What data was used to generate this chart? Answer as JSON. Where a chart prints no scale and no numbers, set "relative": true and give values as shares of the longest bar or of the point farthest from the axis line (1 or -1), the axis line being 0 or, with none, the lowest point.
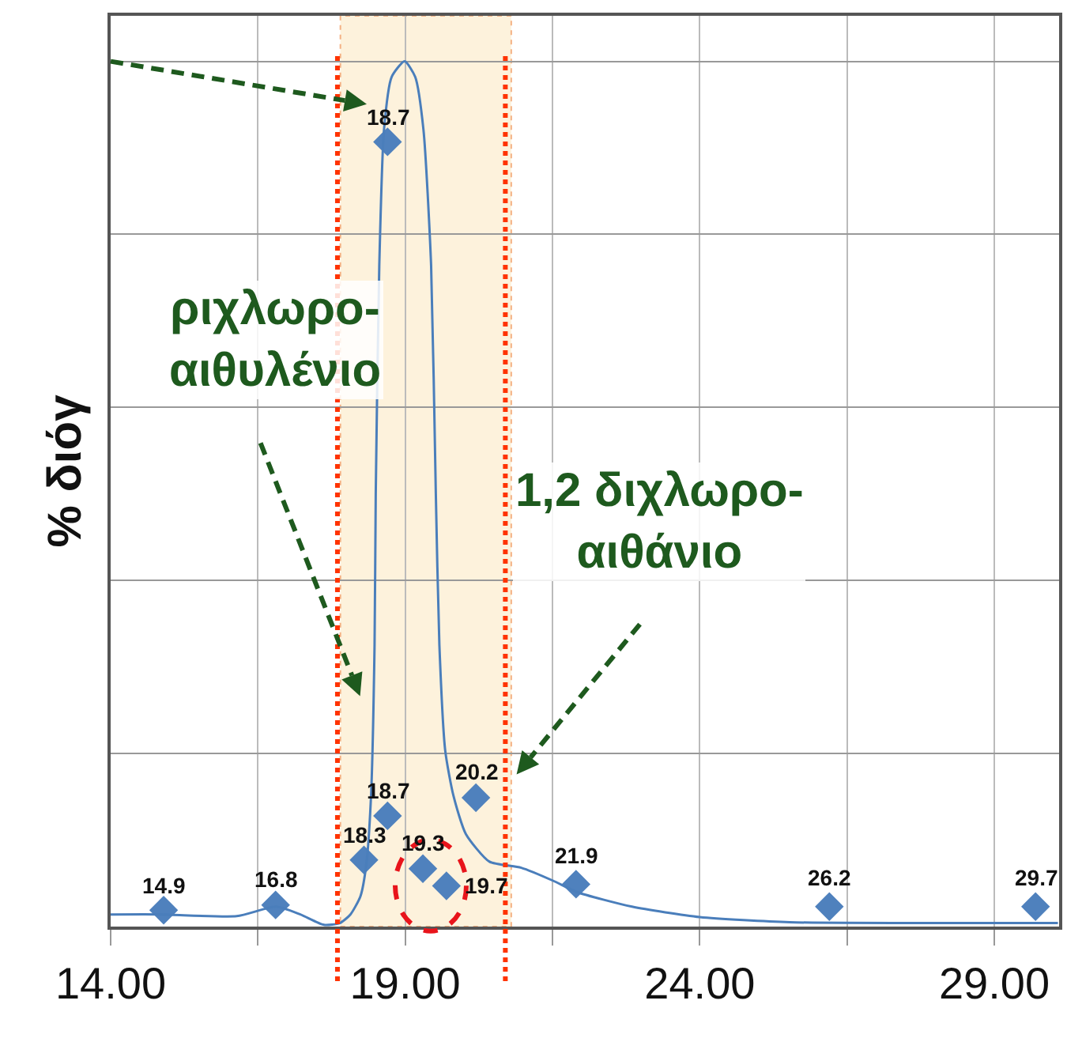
{
  "chart_data": {
    "type": "scatter",
    "relative": true,
    "ylabel": "% διόγ",
    "xlim": [
      14,
      30.1
    ],
    "xticks": [
      {
        "value": 14,
        "label": "14.00"
      },
      {
        "value": 16.5,
        "label": null
      },
      {
        "value": 19,
        "label": "19.00"
      },
      {
        "value": 21.5,
        "label": null
      },
      {
        "value": 24,
        "label": "24.00"
      },
      {
        "value": 26.5,
        "label": null
      },
      {
        "value": 29,
        "label": "29.00"
      }
    ],
    "grid": true,
    "marker": "diamond",
    "annotations": [
      "ριχλωρο-\nαιθυλένιο",
      "1,2 διχλωρο-\nαιθάνιο",
      {
        "text": "14.9",
        "x": 14.9,
        "y": 0.019
      },
      {
        "text": "16.8",
        "x": 16.8,
        "y": 0.025
      },
      {
        "text": "18.3",
        "x": 18.3,
        "y": 0.077
      },
      {
        "text": "18.7",
        "x": 18.7,
        "y": 0.128
      },
      {
        "text": "18.7",
        "x": 18.7,
        "y": 0.907
      },
      {
        "text": "19.3",
        "x": 19.3,
        "y": 0.067
      },
      {
        "text": "19.7",
        "x": 19.7,
        "y": 0.047
      },
      {
        "text": "20.2",
        "x": 20.2,
        "y": 0.149
      },
      {
        "text": "21.9",
        "x": 21.9,
        "y": 0.049
      },
      {
        "text": "26.2",
        "x": 26.2,
        "y": 0.023
      },
      {
        "text": "29.7",
        "x": 29.7,
        "y": 0.023
      }
    ],
    "bands": [
      {
        "axis": "x",
        "from": 17.9,
        "to": 20.8,
        "color": "#fdf2dc"
      }
    ],
    "ref_lines": [
      {
        "axis": "x",
        "value": 17.85,
        "color": "#ff3300",
        "line_style": "dotted"
      },
      {
        "axis": "x",
        "value": 20.7,
        "color": "#ff3300",
        "line_style": "dotted"
      }
    ],
    "series": [
      {
        "color": "#4f81bd",
        "x": [
          14.9,
          16.8,
          18.3,
          18.7,
          18.7,
          19.3,
          19.7,
          20.2,
          21.9,
          26.2,
          29.7
        ],
        "values": [
          0.019,
          0.025,
          0.077,
          0.128,
          0.907,
          0.067,
          0.047,
          0.149,
          0.049,
          0.023,
          0.023
        ]
      },
      {
        "type": "line",
        "color": "#4a7ebb",
        "marker": "none",
        "line_style": "solid",
        "x": [
          14.0,
          14.88,
          16.14,
          16.81,
          17.22,
          17.62,
          17.89,
          18.07,
          18.24,
          18.34,
          18.42,
          18.48,
          18.5,
          18.56,
          18.64,
          18.77,
          18.99,
          19.17,
          19.31,
          19.44,
          19.52,
          19.58,
          19.68,
          19.82,
          20.03,
          20.43,
          20.97,
          21.51,
          21.91,
          22.85,
          24.0,
          25.53,
          28.21,
          30.08
        ],
        "values": [
          0.014,
          0.014,
          0.012,
          0.023,
          0.014,
          0.002,
          0.004,
          0.014,
          0.035,
          0.072,
          0.151,
          0.326,
          0.5,
          0.764,
          0.921,
          0.982,
          1.0,
          0.982,
          0.921,
          0.764,
          0.5,
          0.326,
          0.203,
          0.151,
          0.107,
          0.075,
          0.068,
          0.053,
          0.04,
          0.023,
          0.011,
          0.005,
          0.004,
          0.004
        ]
      }
    ]
  }
}
